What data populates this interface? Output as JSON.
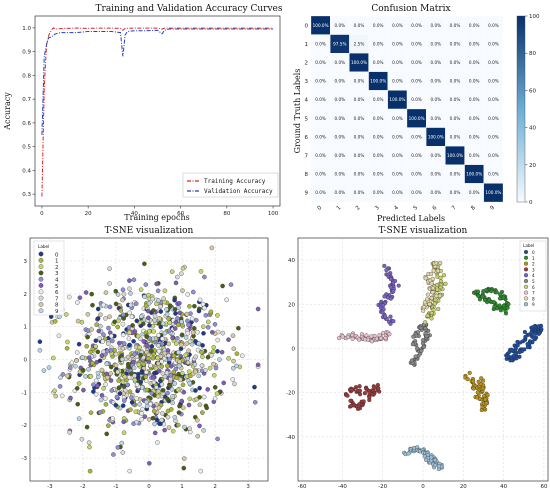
{
  "chart_data": [
    {
      "type": "line",
      "title": "Training and Validation Accuracy Curves",
      "xlabel": "Training epochs",
      "ylabel": "Accuracy",
      "xlim": [
        -3,
        103
      ],
      "ylim": [
        0.25,
        1.05
      ],
      "xticks": [
        "0",
        "20",
        "40",
        "60",
        "80",
        "100"
      ],
      "yticks": [
        "0.3",
        "0.4",
        "0.5",
        "0.6",
        "0.7",
        "0.8",
        "0.9",
        "1.0"
      ],
      "legend": "bottom-right",
      "series": [
        {
          "name": "Training Accuracy",
          "color": "#d62728",
          "x": [
            0,
            1,
            2,
            3,
            4,
            5,
            6,
            8,
            10,
            15,
            20,
            25,
            30,
            34,
            35,
            36,
            40,
            45,
            50,
            52,
            53,
            55,
            60,
            70,
            80,
            90,
            100
          ],
          "y": [
            0.29,
            0.75,
            0.93,
            0.97,
            0.99,
            1.0,
            0.995,
            0.997,
            0.998,
            0.999,
            0.998,
            0.999,
            0.999,
            0.998,
            0.99,
            0.998,
            0.999,
            0.999,
            0.999,
            0.995,
            0.999,
            0.999,
            0.999,
            0.999,
            0.999,
            0.999,
            0.999
          ]
        },
        {
          "name": "Validation Accuracy",
          "color": "#1f3fbf",
          "x": [
            0,
            1,
            2,
            3,
            4,
            5,
            6,
            8,
            10,
            15,
            20,
            25,
            30,
            34,
            35,
            36,
            37,
            40,
            45,
            50,
            52,
            53,
            55,
            60,
            70,
            80,
            90,
            100
          ],
          "y": [
            0.55,
            0.88,
            0.93,
            0.96,
            0.96,
            0.97,
            0.975,
            0.98,
            0.98,
            0.98,
            0.985,
            0.985,
            0.985,
            0.98,
            0.88,
            0.97,
            0.985,
            0.988,
            0.988,
            0.99,
            0.975,
            0.99,
            0.995,
            0.995,
            0.995,
            0.995,
            0.995,
            0.995
          ]
        }
      ]
    },
    {
      "type": "heatmap",
      "title": "Confusion Matrix",
      "xlabel": "Predicted Labels",
      "ylabel": "Ground Truth Labels",
      "labels": [
        "0",
        "1",
        "2",
        "3",
        "4",
        "5",
        "6",
        "7",
        "8",
        "9"
      ],
      "cells": [
        [
          "100.0%",
          "0.0%",
          "0.0%",
          "0.0%",
          "0.0%",
          "0.0%",
          "0.0%",
          "0.0%",
          "0.0%",
          "0.0%"
        ],
        [
          "0.0%",
          "97.5%",
          "2.5%",
          "0.0%",
          "0.0%",
          "0.0%",
          "0.0%",
          "0.0%",
          "0.0%",
          "0.0%"
        ],
        [
          "0.0%",
          "0.0%",
          "100.0%",
          "0.0%",
          "0.0%",
          "0.0%",
          "0.0%",
          "0.0%",
          "0.0%",
          "0.0%"
        ],
        [
          "0.0%",
          "0.0%",
          "0.0%",
          "100.0%",
          "0.0%",
          "0.0%",
          "0.0%",
          "0.0%",
          "0.0%",
          "0.0%"
        ],
        [
          "0.0%",
          "0.0%",
          "0.0%",
          "0.0%",
          "100.0%",
          "0.0%",
          "0.0%",
          "0.0%",
          "0.0%",
          "0.0%"
        ],
        [
          "0.0%",
          "0.0%",
          "0.0%",
          "0.0%",
          "0.0%",
          "100.0%",
          "0.0%",
          "0.0%",
          "0.0%",
          "0.0%"
        ],
        [
          "0.0%",
          "0.0%",
          "0.0%",
          "0.0%",
          "0.0%",
          "0.0%",
          "100.0%",
          "0.0%",
          "0.0%",
          "0.0%"
        ],
        [
          "0.0%",
          "0.0%",
          "0.0%",
          "0.0%",
          "0.0%",
          "0.0%",
          "0.0%",
          "100.0%",
          "0.0%",
          "0.0%"
        ],
        [
          "0.0%",
          "0.0%",
          "0.0%",
          "0.0%",
          "0.0%",
          "0.0%",
          "0.0%",
          "0.0%",
          "100.0%",
          "0.0%"
        ],
        [
          "0.0%",
          "0.0%",
          "0.0%",
          "0.0%",
          "0.0%",
          "0.0%",
          "0.0%",
          "0.0%",
          "0.0%",
          "100.0%"
        ]
      ],
      "values": [
        [
          100,
          0,
          0,
          0,
          0,
          0,
          0,
          0,
          0,
          0
        ],
        [
          0,
          97.5,
          2.5,
          0,
          0,
          0,
          0,
          0,
          0,
          0
        ],
        [
          0,
          0,
          100,
          0,
          0,
          0,
          0,
          0,
          0,
          0
        ],
        [
          0,
          0,
          0,
          100,
          0,
          0,
          0,
          0,
          0,
          0
        ],
        [
          0,
          0,
          0,
          0,
          100,
          0,
          0,
          0,
          0,
          0
        ],
        [
          0,
          0,
          0,
          0,
          0,
          100,
          0,
          0,
          0,
          0
        ],
        [
          0,
          0,
          0,
          0,
          0,
          0,
          100,
          0,
          0,
          0
        ],
        [
          0,
          0,
          0,
          0,
          0,
          0,
          0,
          100,
          0,
          0
        ],
        [
          0,
          0,
          0,
          0,
          0,
          0,
          0,
          0,
          100,
          0
        ],
        [
          0,
          0,
          0,
          0,
          0,
          0,
          0,
          0,
          0,
          100
        ]
      ],
      "colorbar_ticks": [
        "0",
        "20",
        "40",
        "60",
        "80",
        "100"
      ],
      "colormap": {
        "low": "#f7fbff",
        "high": "#08306b"
      }
    },
    {
      "type": "scatter",
      "title": "T-SNE visualization",
      "legend_title": "Label",
      "legend_labels": [
        "0",
        "1",
        "2",
        "3",
        "4",
        "5",
        "6",
        "7",
        "8",
        "9"
      ],
      "xticks": [
        "-3",
        "-2",
        "-1",
        "0",
        "1",
        "2",
        "3"
      ],
      "yticks": [
        "-3",
        "-2",
        "-1",
        "0",
        "1",
        "2",
        "3"
      ],
      "xlim": [
        -3.6,
        3.6
      ],
      "ylim": [
        -3.7,
        3.7
      ],
      "distribution": "all classes mixed in one cloud centred at (0, 0), spread about 1.1 in each direction",
      "points_per_class": 100,
      "colors": [
        "#1f3a8a",
        "#a8b832",
        "#c4d96a",
        "#4a5f14",
        "#8f8fd9",
        "#7f5cb8",
        "#ececec",
        "#d9d9d9",
        "#d7c9a0",
        "#b7d6e8"
      ]
    },
    {
      "type": "scatter",
      "title": "T-SNE visualization",
      "legend_title": "Label",
      "legend_labels": [
        "0",
        "1",
        "2",
        "3",
        "4",
        "5",
        "6",
        "7",
        "8",
        "9"
      ],
      "xticks": [
        "-60",
        "-40",
        "-20",
        "0",
        "20",
        "40",
        "60"
      ],
      "yticks": [
        "-40",
        "-20",
        "0",
        "20",
        "40"
      ],
      "xlim": [
        -62,
        62
      ],
      "ylim": [
        -60,
        50
      ],
      "clusters": [
        {
          "label": "0",
          "color": "#1f4e9e",
          "path": [
            [
              42,
              -2
            ],
            [
              47,
              1
            ],
            [
              52,
              6
            ],
            [
              56,
              10
            ],
            [
              58,
              8
            ],
            [
              54,
              3
            ],
            [
              50,
              0
            ],
            [
              45,
              -5
            ],
            [
              41,
              -3
            ]
          ]
        },
        {
          "label": "1",
          "color": "#2e8b2e",
          "path": [
            [
              25,
              25
            ],
            [
              30,
              24
            ],
            [
              35,
              20
            ],
            [
              40,
              17
            ],
            [
              42,
              21
            ],
            [
              38,
              25
            ],
            [
              32,
              27
            ],
            [
              28,
              22
            ]
          ]
        },
        {
          "label": "2",
          "color": "#b8911f",
          "path": [
            [
              22,
              -12
            ],
            [
              26,
              -16
            ],
            [
              28,
              -22
            ],
            [
              30,
              -27
            ],
            [
              32,
              -23
            ],
            [
              30,
              -18
            ],
            [
              28,
              -14
            ]
          ]
        },
        {
          "label": "3",
          "color": "#9a3b3b",
          "path": [
            [
              -38,
              -20
            ],
            [
              -33,
              -18
            ],
            [
              -28,
              -20
            ],
            [
              -22,
              -18
            ],
            [
              -28,
              -23
            ],
            [
              -33,
              -27
            ],
            [
              -36,
              -24
            ]
          ]
        },
        {
          "label": "4",
          "color": "#7a62c4",
          "path": [
            [
              -18,
              37
            ],
            [
              -16,
              32
            ],
            [
              -14,
              28
            ],
            [
              -17,
              24
            ],
            [
              -21,
              20
            ],
            [
              -19,
              15
            ],
            [
              -15,
              12
            ]
          ]
        },
        {
          "label": "5",
          "color": "#8a8a8a",
          "path": [
            [
              -6,
              -8
            ],
            [
              -3,
              -4
            ],
            [
              -1,
              0
            ],
            [
              1,
              4
            ],
            [
              2,
              8
            ],
            [
              0,
              11
            ],
            [
              -3,
              6
            ],
            [
              -4,
              1
            ]
          ]
        },
        {
          "label": "6",
          "color": "#c9d16e",
          "path": [
            [
              5,
              38
            ],
            [
              8,
              34
            ],
            [
              9,
              28
            ],
            [
              7,
              22
            ],
            [
              5,
              16
            ],
            [
              2,
              13
            ],
            [
              8,
              30
            ]
          ]
        },
        {
          "label": "7",
          "color": "#e8c0d0",
          "path": [
            [
              -40,
              5
            ],
            [
              -35,
              6
            ],
            [
              -30,
              5
            ],
            [
              -25,
              4
            ],
            [
              -20,
              5
            ],
            [
              -17,
              6
            ],
            [
              -28,
              4
            ]
          ]
        },
        {
          "label": "8",
          "color": "#e3d8a8",
          "path": [
            [
              2,
              33
            ],
            [
              4,
              28
            ],
            [
              6,
              24
            ],
            [
              3,
              20
            ],
            [
              0,
              17
            ],
            [
              6,
              35
            ],
            [
              8,
              39
            ]
          ]
        },
        {
          "label": "9",
          "color": "#9cbfd6",
          "path": [
            [
              -8,
              -48
            ],
            [
              -4,
              -45
            ],
            [
              0,
              -47
            ],
            [
              4,
              -49
            ],
            [
              7,
              -52
            ],
            [
              9,
              -55
            ],
            [
              2,
              -48
            ]
          ]
        }
      ]
    }
  ]
}
